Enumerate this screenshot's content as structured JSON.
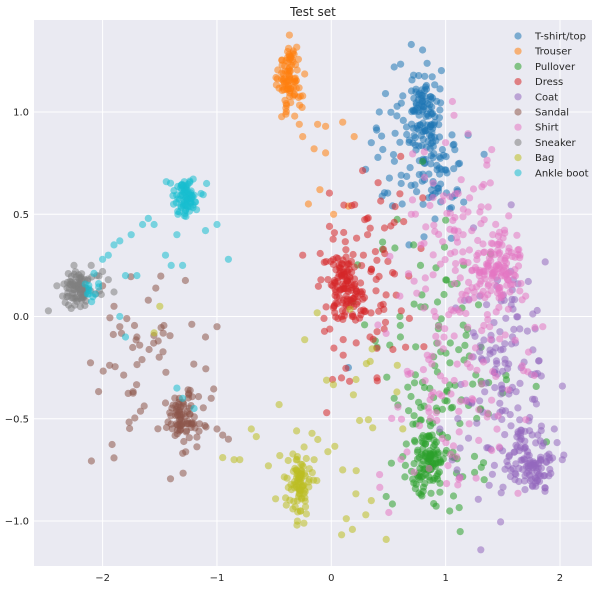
{
  "chart_data": {
    "type": "scatter",
    "title": "Test set",
    "xlabel": "",
    "ylabel": "",
    "xlim": [
      -2.6,
      2.28
    ],
    "ylim": [
      -1.22,
      1.45
    ],
    "x_ticks": [
      -2,
      -1,
      0,
      1,
      2
    ],
    "y_ticks": [
      -1.0,
      -0.5,
      0.0,
      0.5,
      1.0
    ],
    "x_tick_labels": [
      "−2",
      "−1",
      "0",
      "1",
      "2"
    ],
    "y_tick_labels": [
      "−1.0",
      "−0.5",
      "0.0",
      "0.5",
      "1.0"
    ],
    "grid": true,
    "legend_position": "top-right",
    "marker_alpha": 0.55,
    "series": [
      {
        "name": "T-shirt/top",
        "color": "#1f77b4",
        "clusters": [
          {
            "cx": 0.8,
            "cy": 1.0,
            "sx": 0.08,
            "sy": 0.12,
            "n": 110
          },
          {
            "cx": 0.95,
            "cy": 0.7,
            "sx": 0.12,
            "sy": 0.12,
            "n": 60
          },
          {
            "cx": 0.6,
            "cy": 0.85,
            "sx": 0.18,
            "sy": 0.2,
            "n": 30
          }
        ],
        "scatter": [
          [
            0.7,
            1.33
          ],
          [
            0.72,
            1.18
          ],
          [
            0.42,
            1.0
          ],
          [
            0.35,
            0.85
          ],
          [
            0.62,
            0.55
          ],
          [
            0.68,
            0.35
          ],
          [
            0.15,
            -0.25
          ],
          [
            0.3,
            0.72
          ],
          [
            0.55,
            1.22
          ],
          [
            1.1,
            0.62
          ]
        ]
      },
      {
        "name": "Trouser",
        "color": "#ff7f0e",
        "clusters": [
          {
            "cx": -0.36,
            "cy": 1.16,
            "sx": 0.05,
            "sy": 0.08,
            "n": 90
          }
        ],
        "scatter": [
          [
            -0.32,
            0.98
          ],
          [
            -0.28,
            0.94
          ],
          [
            -0.25,
            0.88
          ],
          [
            -0.15,
            0.82
          ],
          [
            -0.12,
            0.94
          ],
          [
            -0.05,
            0.8
          ],
          [
            -0.2,
            0.55
          ],
          [
            0.02,
            0.5
          ],
          [
            0.15,
            0.54
          ],
          [
            -0.1,
            0.62
          ],
          [
            0.1,
            0.95
          ],
          [
            0.2,
            0.88
          ],
          [
            -0.05,
            0.93
          ]
        ]
      },
      {
        "name": "Pullover",
        "color": "#2ca02c",
        "clusters": [
          {
            "cx": 0.85,
            "cy": -0.7,
            "sx": 0.08,
            "sy": 0.1,
            "n": 110
          },
          {
            "cx": 1.0,
            "cy": -0.3,
            "sx": 0.3,
            "sy": 0.35,
            "n": 120
          }
        ],
        "scatter": [
          [
            0.6,
            0.0
          ],
          [
            0.55,
            -0.4
          ],
          [
            0.48,
            -0.88
          ],
          [
            0.72,
            0.35
          ],
          [
            0.4,
            -0.15
          ],
          [
            0.78,
            0.25
          ]
        ]
      },
      {
        "name": "Dress",
        "color": "#d62728",
        "clusters": [
          {
            "cx": 0.12,
            "cy": 0.15,
            "sx": 0.08,
            "sy": 0.08,
            "n": 110
          },
          {
            "cx": 0.3,
            "cy": 0.15,
            "sx": 0.22,
            "sy": 0.25,
            "n": 90
          }
        ],
        "scatter": [
          [
            -0.25,
            0.3
          ],
          [
            0.6,
            0.6
          ],
          [
            0.55,
            0.46
          ],
          [
            0.4,
            -0.3
          ],
          [
            0.65,
            -0.15
          ],
          [
            0.8,
            0.58
          ]
        ]
      },
      {
        "name": "Coat",
        "color": "#9467bd",
        "clusters": [
          {
            "cx": 1.75,
            "cy": -0.7,
            "sx": 0.1,
            "sy": 0.08,
            "n": 110
          },
          {
            "cx": 1.5,
            "cy": -0.3,
            "sx": 0.2,
            "sy": 0.3,
            "n": 130
          }
        ],
        "scatter": [
          [
            1.95,
            -0.55
          ],
          [
            2.02,
            -0.7
          ],
          [
            1.3,
            0.1
          ],
          [
            1.1,
            -0.75
          ],
          [
            0.95,
            -0.55
          ]
        ]
      },
      {
        "name": "Sandal",
        "color": "#8c564b",
        "clusters": [
          {
            "cx": -1.3,
            "cy": -0.5,
            "sx": 0.07,
            "sy": 0.06,
            "n": 80
          },
          {
            "cx": -1.55,
            "cy": -0.25,
            "sx": 0.25,
            "sy": 0.2,
            "n": 55
          }
        ],
        "scatter": [
          [
            -2.0,
            0.15
          ],
          [
            -1.9,
            0.05
          ],
          [
            -1.85,
            -0.05
          ],
          [
            -1.7,
            -0.1
          ],
          [
            -1.6,
            0.08
          ],
          [
            -1.05,
            -0.4
          ],
          [
            -1.0,
            -0.55
          ],
          [
            -0.95,
            -0.58
          ],
          [
            -0.9,
            -0.6
          ],
          [
            -1.1,
            -0.1
          ],
          [
            -1.0,
            -0.05
          ]
        ]
      },
      {
        "name": "Shirt",
        "color": "#e377c2",
        "clusters": [
          {
            "cx": 1.45,
            "cy": 0.25,
            "sx": 0.1,
            "sy": 0.1,
            "n": 120
          },
          {
            "cx": 1.1,
            "cy": 0.4,
            "sx": 0.2,
            "sy": 0.25,
            "n": 80
          },
          {
            "cx": 1.1,
            "cy": -0.35,
            "sx": 0.35,
            "sy": 0.3,
            "n": 120
          }
        ],
        "scatter": [
          [
            1.65,
            0.3
          ],
          [
            1.7,
            0.1
          ],
          [
            1.85,
            -0.05
          ],
          [
            0.6,
            0.1
          ],
          [
            0.7,
            0.5
          ],
          [
            1.0,
            0.85
          ]
        ]
      },
      {
        "name": "Sneaker",
        "color": "#7f7f7f",
        "clusters": [
          {
            "cx": -2.2,
            "cy": 0.14,
            "sx": 0.07,
            "sy": 0.04,
            "n": 85
          }
        ],
        "scatter": [
          [
            -2.05,
            0.2
          ],
          [
            -2.0,
            0.22
          ],
          [
            -1.95,
            0.18
          ],
          [
            -2.3,
            0.21
          ],
          [
            -2.35,
            0.1
          ],
          [
            -2.4,
            0.15
          ],
          [
            -1.9,
            0.12
          ],
          [
            -2.1,
            0.25
          ],
          [
            -2.25,
            0.25
          ]
        ]
      },
      {
        "name": "Bag",
        "color": "#bcbd22",
        "clusters": [
          {
            "cx": -0.28,
            "cy": -0.83,
            "sx": 0.05,
            "sy": 0.07,
            "n": 85
          },
          {
            "cx": 0.15,
            "cy": -0.45,
            "sx": 0.3,
            "sy": 0.3,
            "n": 30
          }
        ],
        "scatter": [
          [
            -0.7,
            -0.55
          ],
          [
            -0.55,
            -0.73
          ],
          [
            -0.45,
            -0.68
          ],
          [
            -0.85,
            -0.7
          ],
          [
            -0.95,
            -0.69
          ],
          [
            -0.8,
            -0.7
          ],
          [
            0.48,
            -1.09
          ],
          [
            0.35,
            -0.9
          ],
          [
            -0.15,
            -0.7
          ],
          [
            0.1,
            -0.75
          ],
          [
            -1.5,
            0.05
          ],
          [
            -1.55,
            -0.08
          ],
          [
            -0.3,
            -1.02
          ]
        ]
      },
      {
        "name": "Ankle boot",
        "color": "#17becf",
        "clusters": [
          {
            "cx": -1.28,
            "cy": 0.58,
            "sx": 0.06,
            "sy": 0.05,
            "n": 80
          },
          {
            "cx": -2.1,
            "cy": 0.14,
            "sx": 0.04,
            "sy": 0.03,
            "n": 12
          }
        ],
        "scatter": [
          [
            -1.55,
            0.45
          ],
          [
            -1.6,
            0.48
          ],
          [
            -1.65,
            0.45
          ],
          [
            -1.75,
            0.4
          ],
          [
            -1.85,
            0.37
          ],
          [
            -1.9,
            0.35
          ],
          [
            -1.95,
            0.3
          ],
          [
            -2.0,
            0.28
          ],
          [
            -1.45,
            0.3
          ],
          [
            -1.4,
            0.25
          ],
          [
            -1.3,
            0.25
          ],
          [
            -1.35,
            0.4
          ],
          [
            -1.1,
            0.42
          ],
          [
            -1.0,
            0.45
          ],
          [
            -0.9,
            0.28
          ],
          [
            -1.7,
            0.2
          ],
          [
            -1.8,
            0.2
          ],
          [
            -1.35,
            -0.35
          ],
          [
            -1.3,
            -0.4
          ],
          [
            -1.2,
            -0.45
          ],
          [
            -1.85,
            0.0
          ],
          [
            -1.8,
            -0.1
          ]
        ]
      }
    ]
  }
}
